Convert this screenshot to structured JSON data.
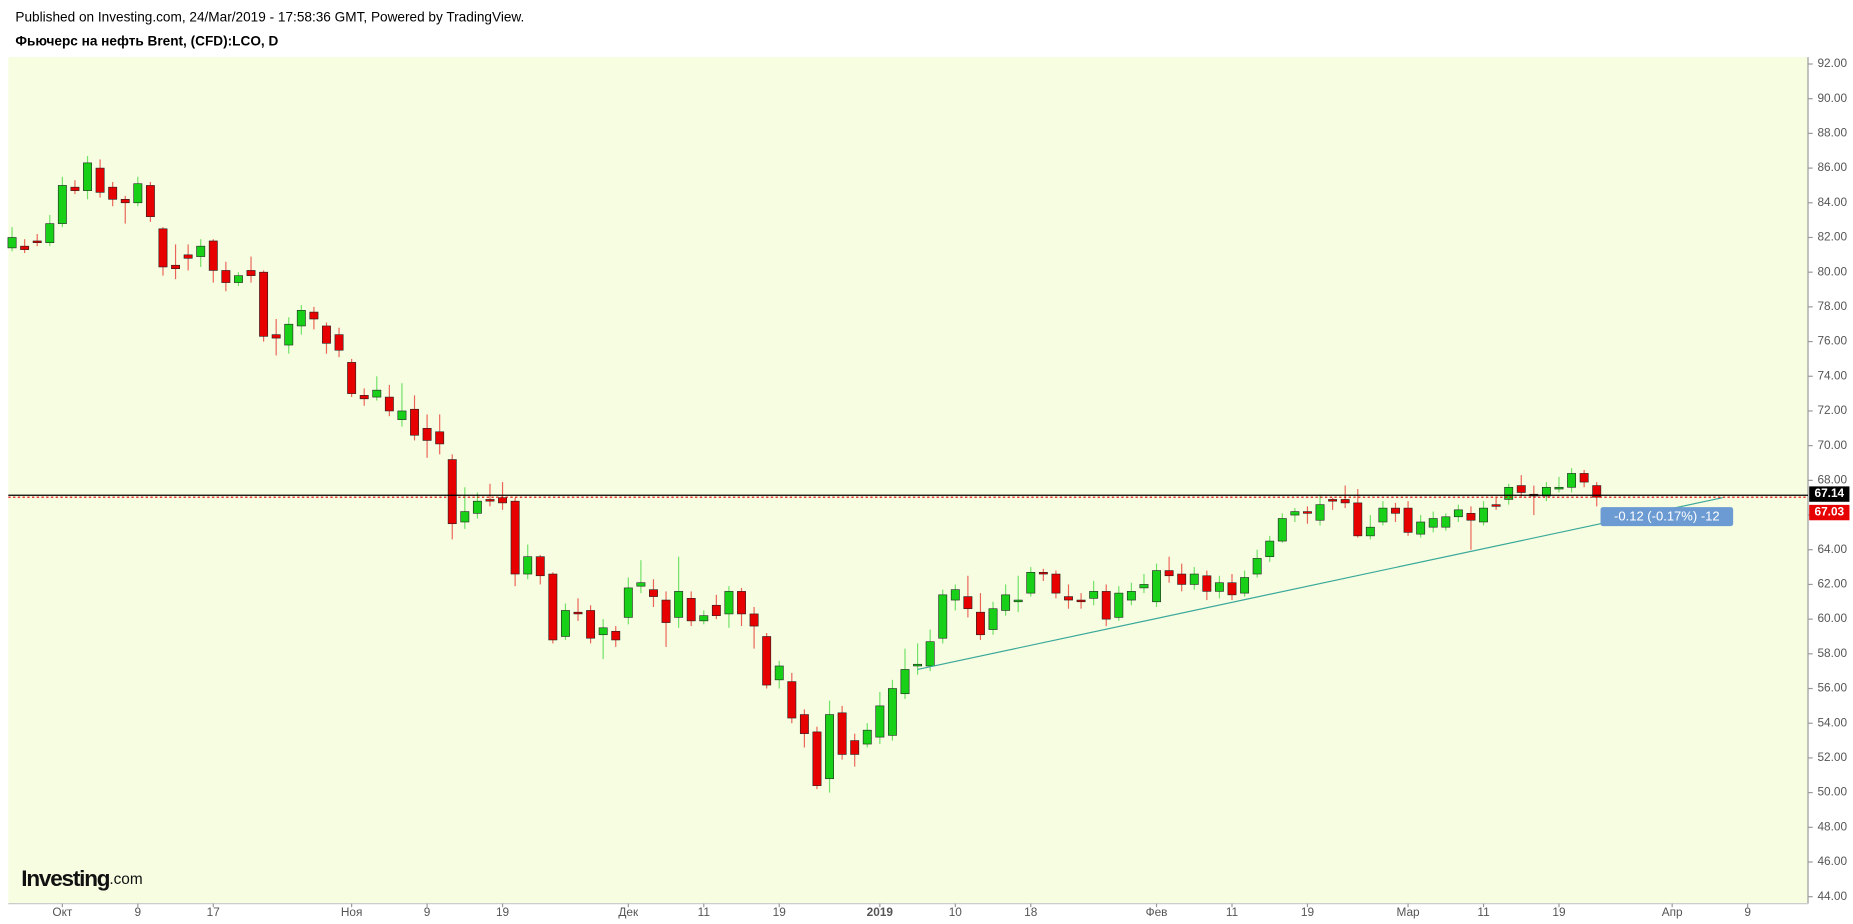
{
  "header": {
    "published": "Published on Investing.com, 24/Mar/2019 - 17:58:36 GMT, Powered by TradingView.",
    "instrument": "Фьючерс на нефть Brent, (CFD):LCO, D"
  },
  "logo": {
    "brand": "Investing",
    "domain": ".com"
  },
  "chart_data": {
    "type": "candlestick",
    "open": [
      81.4,
      81.5,
      81.8,
      81.7,
      82.8,
      84.9,
      84.7,
      86.0,
      84.9,
      84.2,
      84.0,
      85.0,
      82.5,
      80.4,
      81.0,
      80.9,
      81.8,
      80.1,
      79.4,
      80.1,
      80.0,
      76.4,
      75.8,
      76.9,
      77.7,
      76.9,
      76.4,
      74.8,
      72.9,
      72.8,
      72.8,
      71.5,
      72.1,
      71.0,
      70.8,
      69.2,
      65.6,
      66.1,
      66.9,
      67.0,
      66.8,
      62.6,
      63.6,
      62.6,
      59.0,
      60.4,
      60.5,
      59.1,
      59.3,
      60.1,
      61.9,
      61.7,
      61.1,
      60.1,
      61.2,
      59.9,
      60.8,
      60.3,
      61.6,
      60.3,
      59.0,
      56.5,
      56.4,
      54.5,
      53.5,
      50.8,
      54.6,
      53.0,
      52.8,
      53.2,
      53.3,
      55.7,
      57.3,
      57.3,
      58.9,
      61.1,
      61.3,
      60.4,
      59.4,
      60.5,
      61.0,
      61.5,
      62.7,
      62.6,
      61.3,
      61.1,
      61.2,
      61.6,
      60.1,
      61.1,
      61.8,
      61.0,
      62.8,
      62.6,
      62.0,
      62.5,
      61.6,
      62.1,
      61.5,
      62.6,
      63.6,
      64.5,
      66.0,
      66.2,
      65.7,
      66.9,
      66.9,
      66.7,
      64.8,
      65.6,
      66.4,
      66.4,
      64.9,
      65.3,
      65.3,
      65.9,
      66.1,
      65.6,
      66.6,
      66.9,
      67.7,
      67.2,
      67.1,
      67.5,
      67.6,
      68.4,
      67.7
    ],
    "high": [
      82.6,
      81.9,
      82.2,
      83.3,
      85.5,
      85.3,
      86.7,
      86.5,
      85.2,
      84.4,
      85.5,
      85.2,
      82.6,
      81.6,
      81.6,
      81.9,
      81.9,
      80.6,
      80.0,
      80.9,
      80.1,
      77.3,
      77.4,
      78.1,
      78.0,
      77.1,
      76.8,
      75.0,
      73.3,
      74.0,
      73.5,
      73.6,
      72.9,
      71.8,
      71.8,
      69.5,
      67.6,
      67.3,
      67.8,
      67.9,
      67.0,
      64.3,
      63.7,
      62.7,
      60.9,
      61.2,
      60.8,
      60.0,
      59.6,
      62.4,
      63.4,
      62.3,
      61.6,
      63.6,
      61.6,
      60.5,
      61.4,
      61.9,
      61.8,
      60.7,
      59.2,
      57.6,
      56.9,
      54.8,
      53.8,
      55.3,
      55.0,
      53.4,
      54.0,
      55.8,
      56.5,
      58.3,
      58.6,
      59.4,
      61.7,
      62.0,
      62.5,
      61.5,
      61.0,
      62.0,
      62.5,
      63.0,
      62.9,
      62.8,
      62.0,
      61.5,
      62.2,
      62.0,
      61.9,
      62.1,
      62.6,
      63.2,
      63.6,
      63.2,
      63.0,
      62.8,
      62.5,
      62.6,
      62.8,
      64.0,
      64.8,
      66.1,
      66.4,
      66.5,
      67.2,
      67.0,
      67.7,
      67.5,
      66.0,
      66.8,
      66.7,
      66.8,
      66.0,
      66.2,
      66.1,
      66.6,
      66.5,
      66.8,
      67.0,
      67.8,
      68.3,
      67.7,
      67.9,
      68.2,
      68.7,
      68.6,
      67.9
    ],
    "low": [
      81.2,
      81.1,
      81.5,
      81.5,
      82.6,
      84.5,
      84.2,
      84.3,
      83.8,
      82.8,
      83.8,
      82.9,
      79.8,
      79.6,
      80.1,
      80.3,
      79.4,
      78.9,
      79.2,
      79.4,
      76.0,
      75.2,
      75.3,
      76.4,
      76.7,
      75.3,
      75.1,
      72.8,
      72.3,
      72.6,
      71.7,
      71.1,
      70.3,
      69.3,
      69.5,
      64.6,
      65.2,
      65.8,
      66.5,
      66.3,
      61.9,
      62.3,
      62.0,
      58.6,
      58.8,
      59.9,
      58.6,
      57.7,
      58.4,
      59.7,
      61.5,
      60.7,
      58.4,
      59.5,
      59.6,
      59.7,
      60.0,
      59.5,
      59.6,
      58.3,
      56.0,
      56.0,
      54.0,
      52.6,
      50.2,
      50.0,
      51.9,
      51.5,
      52.6,
      52.8,
      53.0,
      55.4,
      56.8,
      57.0,
      58.6,
      60.5,
      60.1,
      58.8,
      59.1,
      60.2,
      60.4,
      61.3,
      62.2,
      61.2,
      60.6,
      60.6,
      60.8,
      59.6,
      59.9,
      60.8,
      61.5,
      60.7,
      62.1,
      61.6,
      61.7,
      61.1,
      61.2,
      61.1,
      61.3,
      62.4,
      63.3,
      64.4,
      65.6,
      65.5,
      65.4,
      66.3,
      66.4,
      64.7,
      64.6,
      65.4,
      65.6,
      64.8,
      64.7,
      65.0,
      65.1,
      65.6,
      64.0,
      65.4,
      66.3,
      66.6,
      67.0,
      66.0,
      66.8,
      67.3,
      67.3,
      67.6,
      66.5
    ],
    "close": [
      82.0,
      81.3,
      81.7,
      82.8,
      85.0,
      84.7,
      86.3,
      84.6,
      84.2,
      84.0,
      85.1,
      83.2,
      80.3,
      80.2,
      80.8,
      81.5,
      80.1,
      79.4,
      79.8,
      79.8,
      76.3,
      76.2,
      77.0,
      77.8,
      77.3,
      75.9,
      75.5,
      73.0,
      72.7,
      73.2,
      72.0,
      72.0,
      70.6,
      70.3,
      70.1,
      65.5,
      66.2,
      66.8,
      66.8,
      66.7,
      62.6,
      63.6,
      62.5,
      58.8,
      60.5,
      60.3,
      58.9,
      59.5,
      58.8,
      61.8,
      62.1,
      61.3,
      59.8,
      61.6,
      59.9,
      60.2,
      60.2,
      61.6,
      60.3,
      59.6,
      56.2,
      57.3,
      54.3,
      53.4,
      50.4,
      54.5,
      52.2,
      52.2,
      53.6,
      55.0,
      56.0,
      57.1,
      57.4,
      58.7,
      61.4,
      61.7,
      60.6,
      59.1,
      60.6,
      61.4,
      61.1,
      62.7,
      62.6,
      61.5,
      61.1,
      61.0,
      61.6,
      60.0,
      61.5,
      61.6,
      62.0,
      62.8,
      62.5,
      62.0,
      62.6,
      61.6,
      62.1,
      61.4,
      62.4,
      63.5,
      64.5,
      65.8,
      66.2,
      66.1,
      66.6,
      66.8,
      66.7,
      64.8,
      65.3,
      66.4,
      66.1,
      65.0,
      65.6,
      65.8,
      65.9,
      66.3,
      65.7,
      66.4,
      66.5,
      67.6,
      67.3,
      67.1,
      67.6,
      67.6,
      68.4,
      67.9,
      67.03
    ],
    "up_color": "#19d019",
    "down_color": "#e60000",
    "xlim": [
      -0.3,
      142.8
    ],
    "xticks": [
      {
        "value": 4,
        "label": "Окт"
      },
      {
        "value": 10,
        "label": "9"
      },
      {
        "value": 16,
        "label": "17"
      },
      {
        "value": 27,
        "label": "Ноя"
      },
      {
        "value": 33,
        "label": "9"
      },
      {
        "value": 39,
        "label": "19"
      },
      {
        "value": 49,
        "label": "Дек"
      },
      {
        "value": 55,
        "label": "11"
      },
      {
        "value": 61,
        "label": "19"
      },
      {
        "value": 69,
        "label": "2019"
      },
      {
        "value": 75,
        "label": "10"
      },
      {
        "value": 81,
        "label": "18"
      },
      {
        "value": 91,
        "label": "Фев"
      },
      {
        "value": 97,
        "label": "11"
      },
      {
        "value": 103,
        "label": "19"
      },
      {
        "value": 111,
        "label": "Мар"
      },
      {
        "value": 117,
        "label": "11"
      },
      {
        "value": 123,
        "label": "19"
      },
      {
        "value": 132,
        "label": "Апр"
      },
      {
        "value": 138,
        "label": "9"
      }
    ],
    "ylim": [
      43.6,
      92.4
    ],
    "yticks": [
      {
        "value": 44,
        "label": "44.00"
      },
      {
        "value": 46,
        "label": "46.00"
      },
      {
        "value": 48,
        "label": "48.00"
      },
      {
        "value": 50,
        "label": "50.00"
      },
      {
        "value": 52,
        "label": "52.00"
      },
      {
        "value": 54,
        "label": "54.00"
      },
      {
        "value": 56,
        "label": "56.00"
      },
      {
        "value": 58,
        "label": "58.00"
      },
      {
        "value": 60,
        "label": "60.00"
      },
      {
        "value": 62,
        "label": "62.00"
      },
      {
        "value": 64,
        "label": "64.00"
      },
      {
        "value": 66,
        "label": "66.00"
      },
      {
        "value": 68,
        "label": "68.00"
      },
      {
        "value": 70,
        "label": "70.00"
      },
      {
        "value": 72,
        "label": "72.00"
      },
      {
        "value": 74,
        "label": "74.00"
      },
      {
        "value": 76,
        "label": "76.00"
      },
      {
        "value": 78,
        "label": "78.00"
      },
      {
        "value": 80,
        "label": "80.00"
      },
      {
        "value": 82,
        "label": "82.00"
      },
      {
        "value": 84,
        "label": "84.00"
      },
      {
        "value": 86,
        "label": "86.00"
      },
      {
        "value": 88,
        "label": "88.00"
      },
      {
        "value": 90,
        "label": "90.00"
      },
      {
        "value": 92,
        "label": "92.00"
      }
    ],
    "price_lines": [
      {
        "value": 67.14,
        "color": "#000000"
      },
      {
        "value": 67.03,
        "color": "#e60000"
      }
    ],
    "trendline": {
      "x": [
        72,
        136
      ],
      "y": [
        57.1,
        67.0
      ],
      "color": "#3aa89a"
    },
    "annotation": "-0.12 (-0.17%) -12"
  }
}
